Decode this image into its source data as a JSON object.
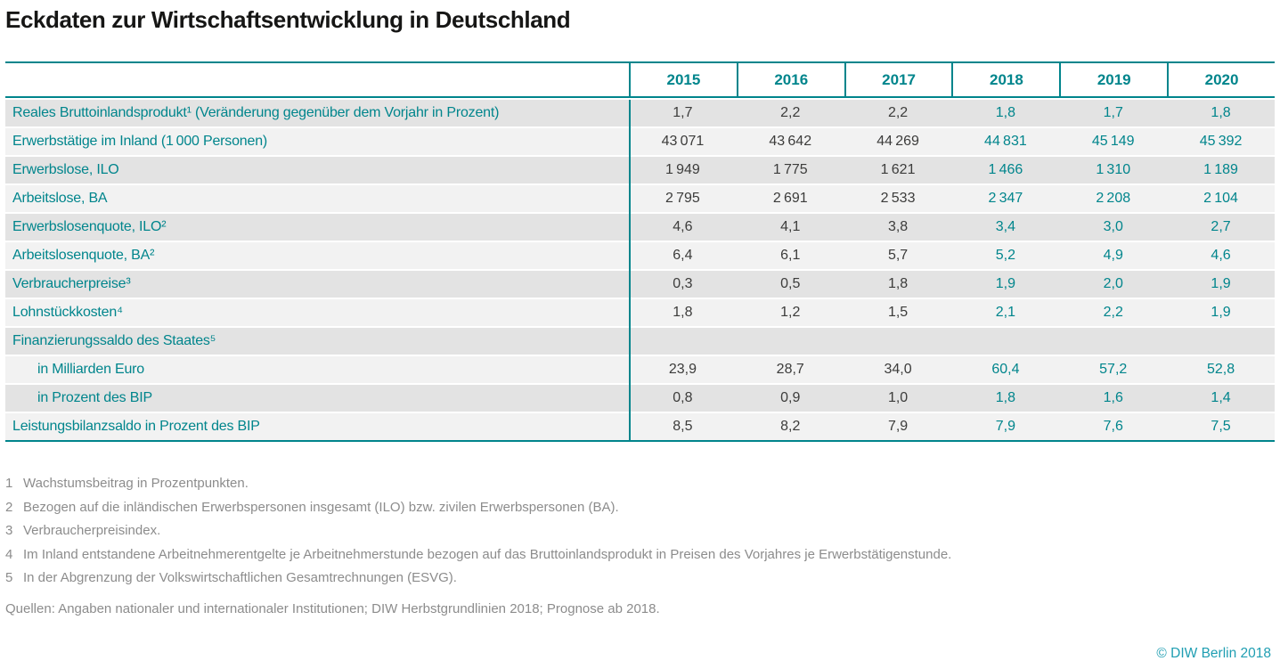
{
  "title": "Eckdaten zur Wirtschaftsentwicklung in Deutschland",
  "colors": {
    "teal_accent": "#00858C",
    "historical_value_text": "#3C3C3B",
    "row_dark": "#E3E3E3",
    "row_light": "#F2F2F2",
    "footnote_gray": "#8C8C8C",
    "copyright_teal": "#1F9EB2"
  },
  "table": {
    "year_headers": [
      "2015",
      "2016",
      "2017",
      "2018",
      "2019",
      "2020"
    ],
    "forecast_years_start": "2018",
    "rows": [
      {
        "label": "Reales Bruttoinlandsprodukt¹ (Veränderung gegenüber dem Vorjahr in Prozent)",
        "values": [
          "1,7",
          "2,2",
          "2,2",
          "1,8",
          "1,7",
          "1,8"
        ]
      },
      {
        "label": "Erwerbstätige im Inland (1 000 Personen)",
        "values": [
          "43 071",
          "43 642",
          "44 269",
          "44 831",
          "45 149",
          "45 392"
        ]
      },
      {
        "label": "Erwerbslose, ILO",
        "values": [
          "1 949",
          "1 775",
          "1 621",
          "1 466",
          "1 310",
          "1 189"
        ]
      },
      {
        "label": "Arbeitslose, BA",
        "values": [
          "2 795",
          "2 691",
          "2 533",
          "2 347",
          "2 208",
          "2 104"
        ]
      },
      {
        "label": "Erwerbslosenquote, ILO²",
        "values": [
          "4,6",
          "4,1",
          "3,8",
          "3,4",
          "3,0",
          "2,7"
        ]
      },
      {
        "label": "Arbeitslosenquote, BA²",
        "values": [
          "6,4",
          "6,1",
          "5,7",
          "5,2",
          "4,9",
          "4,6"
        ]
      },
      {
        "label": "Verbraucherpreise³",
        "values": [
          "0,3",
          "0,5",
          "1,8",
          "1,9",
          "2,0",
          "1,9"
        ]
      },
      {
        "label": "Lohnstückkosten⁴",
        "values": [
          "1,8",
          "1,2",
          "1,5",
          "2,1",
          "2,2",
          "1,9"
        ]
      },
      {
        "label": "Finanzierungssaldo des Staates⁵",
        "values": [
          "",
          "",
          "",
          "",
          "",
          ""
        ]
      },
      {
        "label": "in Milliarden Euro",
        "values": [
          "23,9",
          "28,7",
          "34,0",
          "60,4",
          "57,2",
          "52,8"
        ]
      },
      {
        "label": "in Prozent des BIP",
        "values": [
          "0,8",
          "0,9",
          "1,0",
          "1,8",
          "1,6",
          "1,4"
        ]
      },
      {
        "label": "Leistungsbilanzsaldo in Prozent des BIP",
        "values": [
          "8,5",
          "8,2",
          "7,9",
          "7,9",
          "7,6",
          "7,5"
        ]
      }
    ]
  },
  "chart_data": {
    "type": "table",
    "title": "Eckdaten zur Wirtschaftsentwicklung in Deutschland",
    "columns": [
      2015,
      2016,
      2017,
      2018,
      2019,
      2020
    ],
    "rows": [
      {
        "label": "Reales Bruttoinlandsprodukt (Veränderung gegenüber dem Vorjahr in Prozent)",
        "values": [
          1.7,
          2.2,
          2.2,
          1.8,
          1.7,
          1.8
        ]
      },
      {
        "label": "Erwerbstätige im Inland (1 000 Personen)",
        "values": [
          43071,
          43642,
          44269,
          44831,
          45149,
          45392
        ]
      },
      {
        "label": "Erwerbslose, ILO",
        "values": [
          1949,
          1775,
          1621,
          1466,
          1310,
          1189
        ]
      },
      {
        "label": "Arbeitslose, BA",
        "values": [
          2795,
          2691,
          2533,
          2347,
          2208,
          2104
        ]
      },
      {
        "label": "Erwerbslosenquote, ILO",
        "values": [
          4.6,
          4.1,
          3.8,
          3.4,
          3.0,
          2.7
        ]
      },
      {
        "label": "Arbeitslosenquote, BA",
        "values": [
          6.4,
          6.1,
          5.7,
          5.2,
          4.9,
          4.6
        ]
      },
      {
        "label": "Verbraucherpreise",
        "values": [
          0.3,
          0.5,
          1.8,
          1.9,
          2.0,
          1.9
        ]
      },
      {
        "label": "Lohnstückkosten",
        "values": [
          1.8,
          1.2,
          1.5,
          2.1,
          2.2,
          1.9
        ]
      },
      {
        "label": "Finanzierungssaldo des Staates",
        "values": [
          null,
          null,
          null,
          null,
          null,
          null
        ]
      },
      {
        "label": "Finanzierungssaldo des Staates in Milliarden Euro",
        "values": [
          23.9,
          28.7,
          34.0,
          60.4,
          57.2,
          52.8
        ]
      },
      {
        "label": "Finanzierungssaldo des Staates in Prozent des BIP",
        "values": [
          0.8,
          0.9,
          1.0,
          1.8,
          1.6,
          1.4
        ]
      },
      {
        "label": "Leistungsbilanzsaldo in Prozent des BIP",
        "values": [
          8.5,
          8.2,
          7.9,
          7.9,
          7.6,
          7.5
        ]
      }
    ],
    "notes": "Werte ab 2018 sind Prognosen (in Türkis dargestellt)."
  },
  "footnotes": [
    {
      "marker": "1",
      "text": "Wachstumsbeitrag in Prozentpunkten."
    },
    {
      "marker": "2",
      "text": "Bezogen auf die inländischen Erwerbspersonen insgesamt (ILO) bzw. zivilen Erwerbspersonen (BA)."
    },
    {
      "marker": "3",
      "text": "Verbraucherpreisindex."
    },
    {
      "marker": "4",
      "text": "Im Inland entstandene Arbeitnehmerentgelte je Arbeitnehmerstunde bezogen auf das Bruttoinlandsprodukt in Preisen des Vorjahres je Erwerbstätigenstunde."
    },
    {
      "marker": "5",
      "text": "In der Abgrenzung der Volkswirtschaftlichen Gesamtrechnungen (ESVG)."
    }
  ],
  "source_line": "Quellen: Angaben nationaler und internationaler Institutionen; DIW Herbstgrundlinien 2018; Prognose ab 2018.",
  "copyright": "© DIW Berlin 2018"
}
